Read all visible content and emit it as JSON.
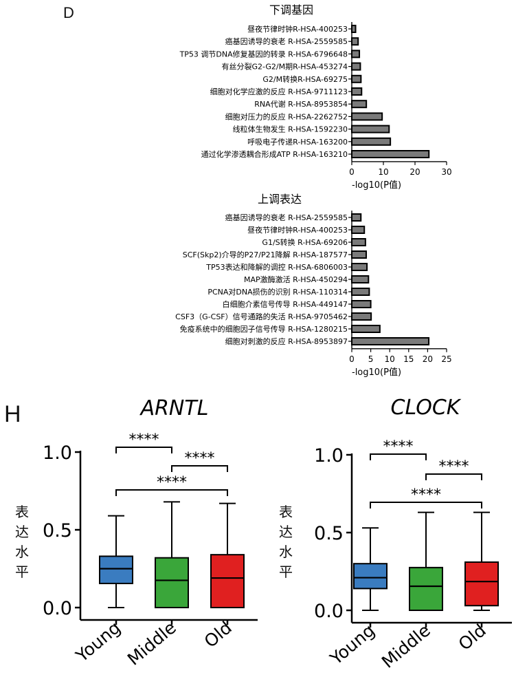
{
  "panels": {
    "D": "D",
    "H": "H"
  },
  "chart_data": [
    {
      "type": "bar",
      "orientation": "horizontal",
      "title": "下调基因",
      "xlabel": "-log10(P值)",
      "xlim": [
        0,
        30
      ],
      "xticks": [
        "0",
        "10",
        "20",
        "30"
      ],
      "categories": [
        "昼夜节律时钟R-HSA-400253",
        "癌基因诱导的衰老 R-HSA-2559585",
        "TP53 调节DNA修复基因的转录 R-HSA-6796648",
        "有丝分裂G2-G2/M期R-HSA-453274",
        "G2/M转换R-HSA-69275",
        "细胞对化学应激的反应 R-HSA-9711123",
        "RNA代谢 R-HSA-8953854",
        "细胞对压力的反应 R-HSA-2262752",
        "线粒体生物发生 R-HSA-1592230",
        "呼吸电子传递R-HSA-163200",
        "通过化学渗透耦合形成ATP R-HSA-163210"
      ],
      "values": [
        1.2,
        2.0,
        2.4,
        2.7,
        2.9,
        3.1,
        4.6,
        9.6,
        11.8,
        12.2,
        24.4
      ]
    },
    {
      "type": "bar",
      "orientation": "horizontal",
      "title": "上调表达",
      "xlabel": "-log10(P值)",
      "xlim": [
        0,
        25
      ],
      "xticks": [
        "0",
        "5",
        "10",
        "15",
        "20",
        "25"
      ],
      "categories": [
        "癌基因诱导的衰老 R-HSA-2559585",
        "昼夜节律时钟R-HSA-400253",
        "G1/S转换 R-HSA-69206",
        "SCF(Skp2)介导的P27/P21降解 R-HSA-187577",
        "TP53表达和降解的调控 R-HSA-6806003",
        "MAP激酶激活 R-HSA-450294",
        "PCNA对DNA损伤的识别 R-HSA-110314",
        "白细胞介素信号传导 R-HSA-449147",
        "CSF3（G-CSF）信号通路的失活 R-HSA-9705462",
        "免疫系统中的细胞因子信号传导 R-HSA-1280215",
        "细胞对刺激的反应 R-HSA-8953897"
      ],
      "values": [
        2.4,
        3.3,
        3.6,
        3.8,
        4.0,
        4.4,
        4.6,
        5.0,
        5.1,
        7.4,
        20.3
      ]
    },
    {
      "type": "box",
      "title": "ARNTL",
      "ylabel": "表达水平",
      "ylim": [
        0,
        1.0
      ],
      "yticks": [
        "0.0",
        "0.5",
        "1.0"
      ],
      "categories": [
        "Young",
        "Middle",
        "Old"
      ],
      "colors": [
        "#3a7cc0",
        "#3aa63a",
        "#e02020"
      ],
      "boxes": [
        {
          "min": 0.0,
          "q1": 0.155,
          "median": 0.25,
          "q3": 0.33,
          "max": 0.59
        },
        {
          "min": 0.0,
          "q1": 0.0,
          "median": 0.175,
          "q3": 0.32,
          "max": 0.68
        },
        {
          "min": 0.0,
          "q1": 0.0,
          "median": 0.19,
          "q3": 0.34,
          "max": 0.67
        }
      ],
      "significance": [
        {
          "pair": [
            "Young",
            "Middle"
          ],
          "label": "****"
        },
        {
          "pair": [
            "Middle",
            "Old"
          ],
          "label": "****"
        },
        {
          "pair": [
            "Young",
            "Old"
          ],
          "label": "****"
        }
      ]
    },
    {
      "type": "box",
      "title": "CLOCK",
      "ylabel": "表达水平",
      "ylim": [
        0,
        1.0
      ],
      "yticks": [
        "0.0",
        "0.5",
        "1.0"
      ],
      "categories": [
        "Young",
        "Middle",
        "Old"
      ],
      "colors": [
        "#3a7cc0",
        "#3aa63a",
        "#e02020"
      ],
      "boxes": [
        {
          "min": 0.0,
          "q1": 0.14,
          "median": 0.21,
          "q3": 0.3,
          "max": 0.53
        },
        {
          "min": 0.0,
          "q1": 0.0,
          "median": 0.155,
          "q3": 0.275,
          "max": 0.63
        },
        {
          "min": 0.0,
          "q1": 0.03,
          "median": 0.185,
          "q3": 0.31,
          "max": 0.63
        }
      ],
      "significance": [
        {
          "pair": [
            "Young",
            "Middle"
          ],
          "label": "****"
        },
        {
          "pair": [
            "Middle",
            "Old"
          ],
          "label": "****"
        },
        {
          "pair": [
            "Young",
            "Old"
          ],
          "label": "****"
        }
      ]
    }
  ]
}
